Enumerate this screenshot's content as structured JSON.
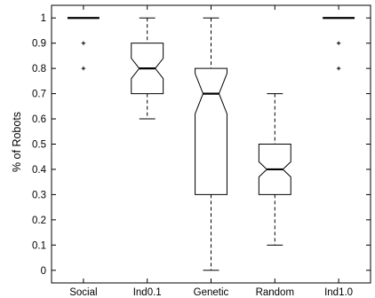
{
  "chart_data": {
    "type": "boxplot",
    "title": "",
    "xlabel": "",
    "ylabel": "% of Robots",
    "ylim": [
      -0.05,
      1.05
    ],
    "yticks": [
      "0",
      "0.1",
      "0.2",
      "0.3",
      "0.4",
      "0.5",
      "0.6",
      "0.7",
      "0.8",
      "0.9",
      "1"
    ],
    "grid": false,
    "notched": true,
    "categories": [
      "Social",
      "Ind0.1",
      "Genetic",
      "Random",
      "Ind1.0"
    ],
    "boxes": [
      {
        "category": "Social",
        "whisker_low": 1.0,
        "q1": 1.0,
        "median": 1.0,
        "q3": 1.0,
        "whisker_high": 1.0,
        "notch_low": 1.0,
        "notch_high": 1.0,
        "outliers": [
          0.9,
          0.8
        ]
      },
      {
        "category": "Ind0.1",
        "whisker_low": 0.6,
        "q1": 0.7,
        "median": 0.8,
        "q3": 0.9,
        "whisker_high": 1.0,
        "notch_low": 0.76,
        "notch_high": 0.84,
        "outliers": []
      },
      {
        "category": "Genetic",
        "whisker_low": 0.0,
        "q1": 0.3,
        "median": 0.7,
        "q3": 0.8,
        "whisker_high": 1.0,
        "notch_low": 0.62,
        "notch_high": 0.78,
        "outliers": []
      },
      {
        "category": "Random",
        "whisker_low": 0.1,
        "q1": 0.3,
        "median": 0.4,
        "q3": 0.5,
        "whisker_high": 0.7,
        "notch_low": 0.37,
        "notch_high": 0.43,
        "outliers": []
      },
      {
        "category": "Ind1.0",
        "whisker_low": 1.0,
        "q1": 1.0,
        "median": 1.0,
        "q3": 1.0,
        "whisker_high": 1.0,
        "notch_low": 1.0,
        "notch_high": 1.0,
        "outliers": [
          0.9,
          0.8
        ]
      }
    ]
  }
}
